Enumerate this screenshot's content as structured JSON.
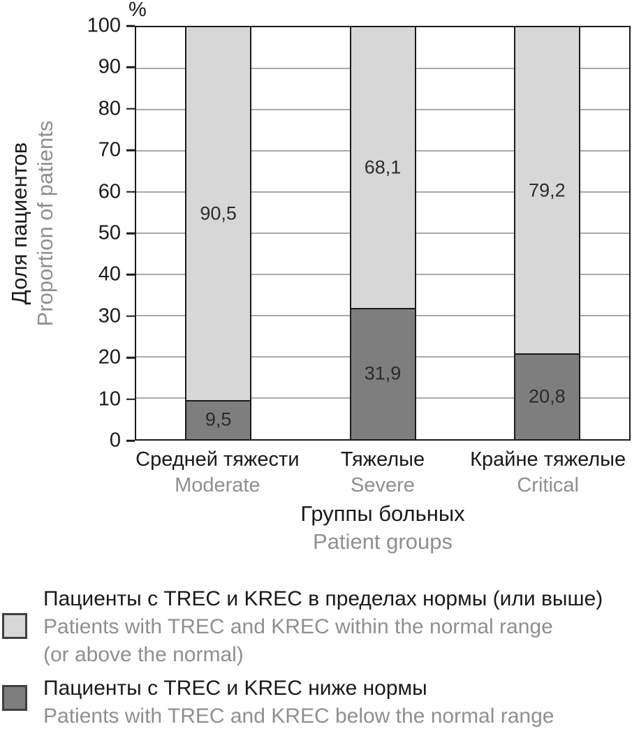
{
  "chart_data": {
    "type": "bar",
    "stacked": true,
    "unit_label": "%",
    "categories": [
      {
        "ru": "Средней тяжести",
        "en": "Moderate"
      },
      {
        "ru": "Тяжелые",
        "en": "Severe"
      },
      {
        "ru": "Крайне тяжелые",
        "en": "Critical"
      }
    ],
    "series": [
      {
        "name_ru": "Пациенты с TREC и KREC в пределах нормы (или выше)",
        "name_en": "Patients with TREC and KREC within the normal range (or above the normal)",
        "values": [
          90.5,
          68.1,
          79.2
        ],
        "color": "#d7d7d7"
      },
      {
        "name_ru": "Пациенты с TREC и KREC ниже нормы",
        "name_en": "Patients with TREC and KREC below the normal range",
        "values": [
          9.5,
          31.9,
          20.8
        ],
        "color": "#7e7e7e"
      }
    ],
    "value_labels": [
      [
        "90,5",
        "68,1",
        "79,2"
      ],
      [
        "9,5",
        "31,9",
        "20,8"
      ]
    ],
    "xlabel_ru": "Группы больных",
    "xlabel_en": "Patient groups",
    "ylabel_ru": "Доля пациентов",
    "ylabel_en": "Proportion of patients",
    "ylim": [
      0,
      100
    ],
    "ytick_step": 10,
    "grid": true,
    "legend_position": "bottom"
  },
  "legend": {
    "items": [
      {
        "swatch_color": "#d7d7d7",
        "label_ru": "Пациенты с TREC и KREC в пределах нормы (или выше)",
        "label_en_lines": [
          "Patients with TREC and KREC within the normal range",
          "(or above the normal)"
        ]
      },
      {
        "swatch_color": "#7e7e7e",
        "label_ru": "Пациенты с TREC и KREC ниже нормы",
        "label_en_lines": [
          "Patients with TREC and KREC below the normal range"
        ]
      }
    ]
  },
  "colors": {
    "axis": "#1a1a1a",
    "gridline": "#a9a9a9",
    "secondary_text": "#8f8f8f"
  }
}
